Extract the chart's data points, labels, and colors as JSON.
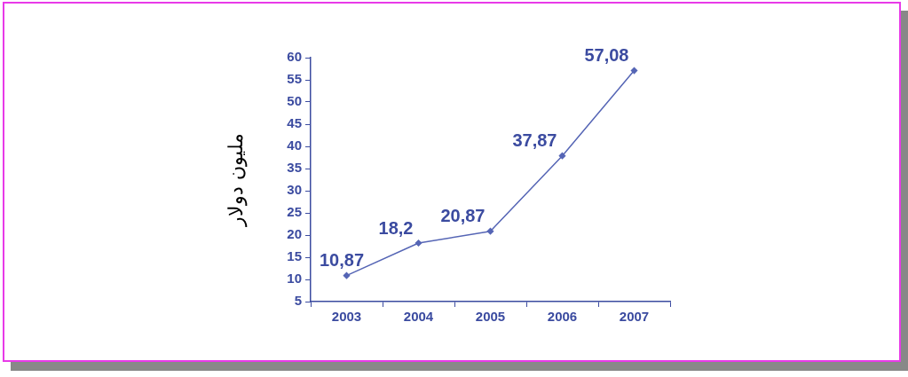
{
  "chart_data": {
    "type": "line",
    "ylabel": "مليون دولار",
    "categories": [
      "2003",
      "2004",
      "2005",
      "2006",
      "2007"
    ],
    "series": [
      {
        "color": "#5565b5",
        "values": [
          10.87,
          18.2,
          20.87,
          37.87,
          57.08
        ],
        "value_labels": [
          "10,87",
          "18,2",
          "20,87",
          "37,87",
          "57,08"
        ]
      }
    ],
    "ylim": [
      5,
      60
    ],
    "yticks": [
      5,
      10,
      15,
      20,
      25,
      30,
      35,
      40,
      45,
      50,
      55,
      60
    ],
    "grid": false,
    "legend": false,
    "marker": "diamond",
    "line_style": "solid"
  }
}
